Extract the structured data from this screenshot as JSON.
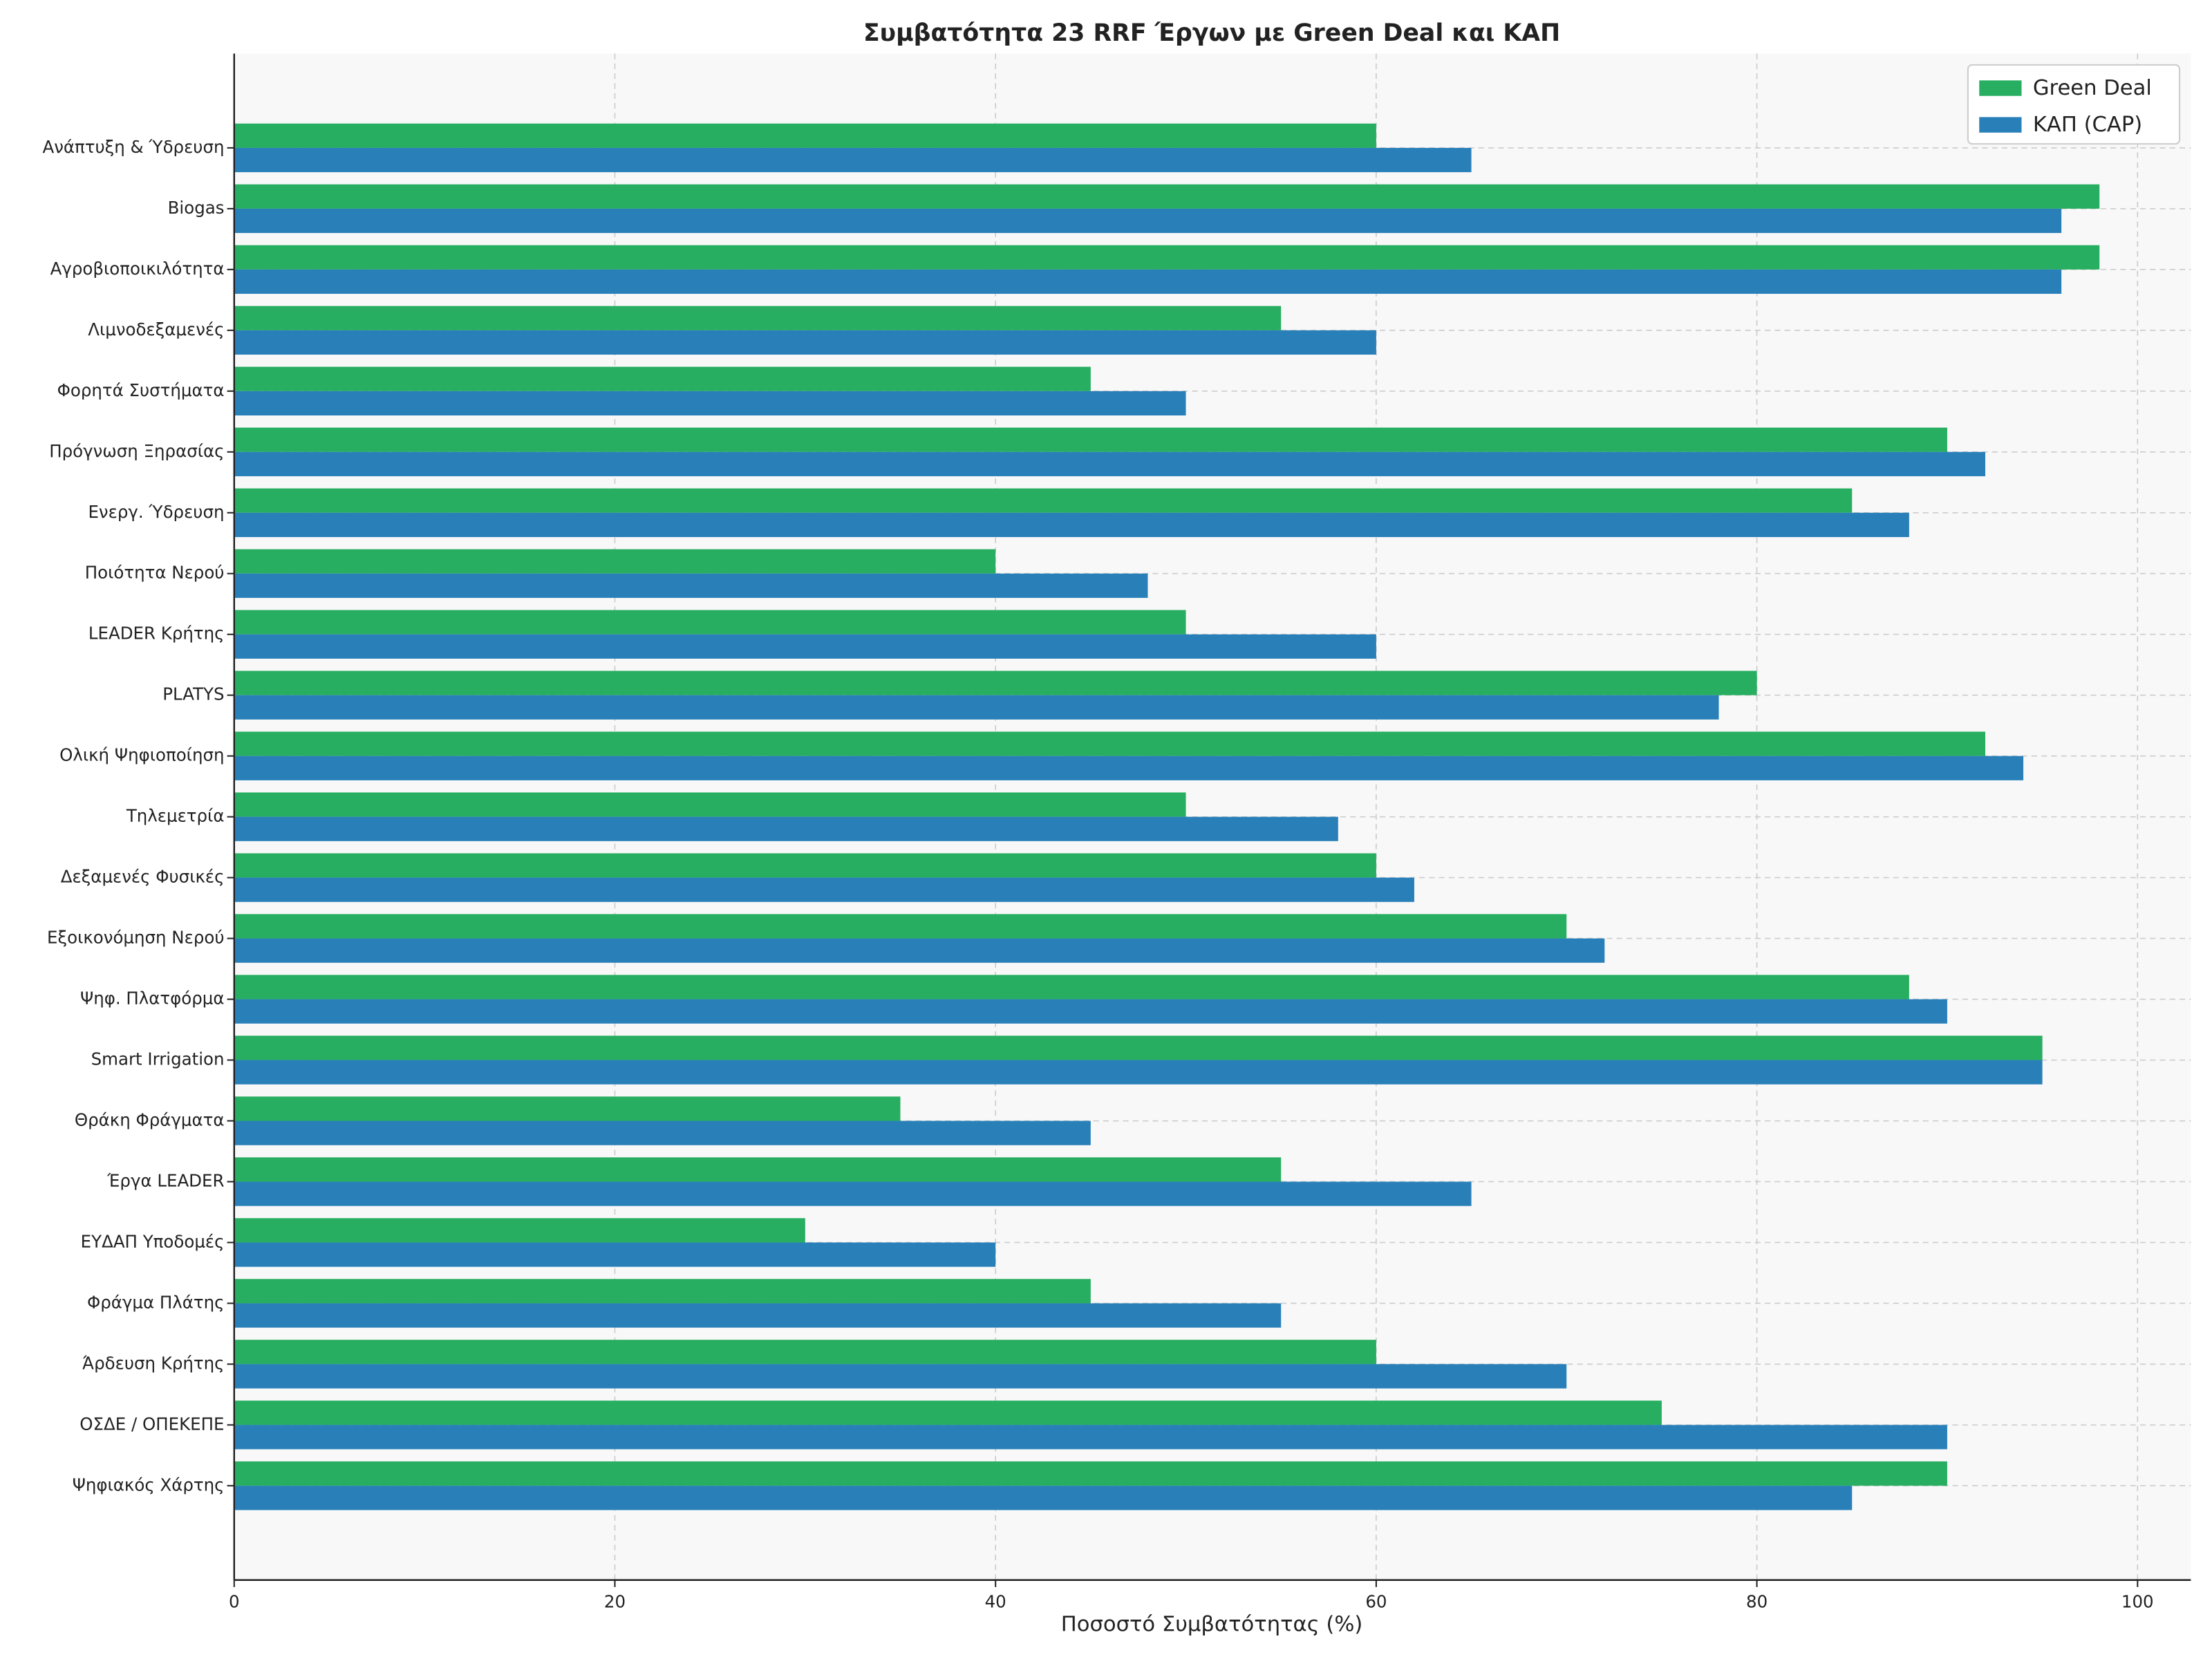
{
  "chart_data": {
    "type": "barh",
    "title": "Συμβατότητα 23 RRF Έργων με Green Deal και ΚΑΠ",
    "x_label": "Ποσοστό Συμβατότητας (%)",
    "categories": [
      "Ανάπτυξη & Ύδρευση",
      "Biogas",
      "Αγροβιοποικιλότητα",
      "Λιμνοδεξαμενές",
      "Φορητά Συστήματα",
      "Πρόγνωση Ξηρασίας",
      "Ενεργ. Ύδρευση",
      "Ποιότητα Νερού",
      "LEADER Κρήτης",
      "PLATYS",
      "Ολική Ψηφιοποίηση",
      "Τηλεμετρία",
      "Δεξαμενές Φυσικές",
      "Εξοικονόμηση Νερού",
      "Ψηφ. Πλατφόρμα",
      "Smart Irrigation",
      "Θράκη Φράγματα",
      "Έργα LEADER",
      "ΕΥΔΑΠ Υποδομές",
      "Φράγμα Πλάτης",
      "Άρδευση Κρήτης",
      "ΟΣΔΕ / ΟΠΕΚΕΠΕ",
      "Ψηφιακός Χάρτης"
    ],
    "series": [
      {
        "name": "Green Deal",
        "color": "#27ae60",
        "values": [
          60,
          98,
          98,
          55,
          45,
          90,
          85,
          40,
          50,
          80,
          92,
          50,
          60,
          70,
          88,
          95,
          35,
          55,
          30,
          45,
          60,
          75,
          90
        ]
      },
      {
        "name": "ΚΑΠ (CAP)",
        "color": "#2980b9",
        "values": [
          65,
          96,
          96,
          60,
          50,
          92,
          88,
          48,
          60,
          78,
          94,
          58,
          62,
          72,
          90,
          95,
          45,
          65,
          40,
          55,
          70,
          90,
          85
        ]
      }
    ],
    "xlim": [
      0,
      102.8
    ],
    "xticks": [
      0,
      20,
      40,
      60,
      80,
      100
    ],
    "grid": true,
    "legend": "upper-right"
  }
}
